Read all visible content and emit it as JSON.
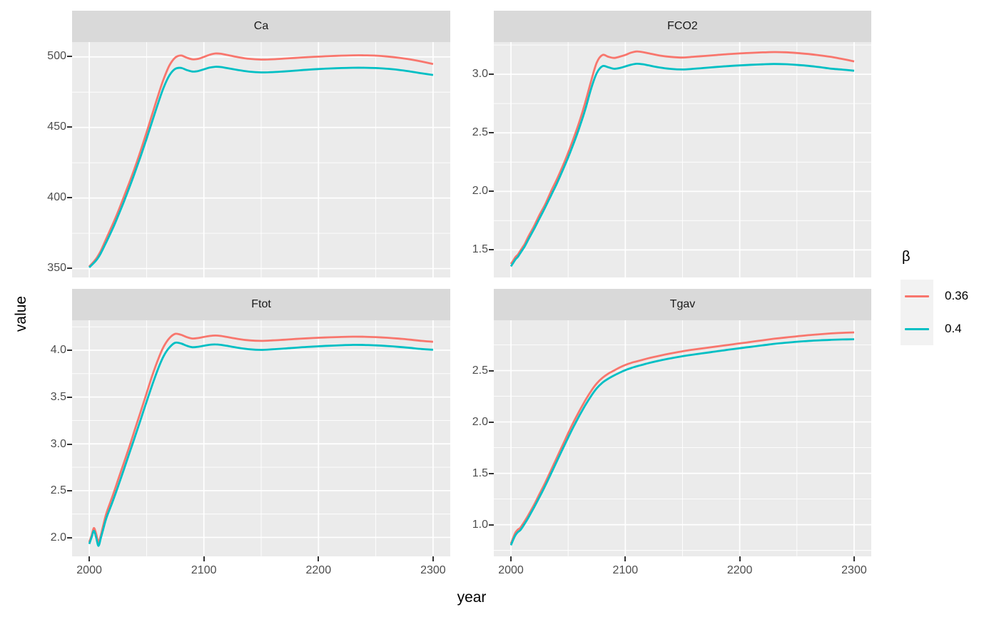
{
  "figure": {
    "type": "faceted-line-chart",
    "x_axis_title": "year",
    "y_axis_title": "value",
    "legend": {
      "title": "β",
      "position": "right",
      "entries": [
        {
          "label": "0.36",
          "color": "#F8766D"
        },
        {
          "label": "0.4",
          "color": "#00BFC4"
        }
      ]
    },
    "colors": {
      "panel_background": "#EBEBEB",
      "strip_background": "#D9D9D9",
      "gridline": "#FFFFFF",
      "tick_mark": "#333333",
      "tick_text": "#4D4D4D",
      "series_036": "#F8766D",
      "series_04": "#00BFC4"
    }
  },
  "chart_data": [
    {
      "type": "line",
      "facet": "Ca",
      "xlabel": "year",
      "ylabel": "value",
      "xlim": [
        1985,
        2315
      ],
      "ylim": [
        343.3,
        510.5
      ],
      "x_ticks": [
        2000,
        2100,
        2200,
        2300
      ],
      "x_minor": [
        2050,
        2150,
        2250
      ],
      "y_ticks": [
        350,
        400,
        450,
        500
      ],
      "y_tick_labels": [
        "350",
        "400",
        "450",
        "500"
      ],
      "y_minor": [
        375,
        425,
        475
      ],
      "grid": true,
      "x": [
        2000,
        2002,
        2004,
        2006,
        2008,
        2010,
        2012,
        2015,
        2020,
        2025,
        2030,
        2035,
        2040,
        2045,
        2050,
        2055,
        2060,
        2065,
        2070,
        2075,
        2080,
        2085,
        2090,
        2095,
        2100,
        2105,
        2110,
        2115,
        2120,
        2130,
        2140,
        2150,
        2160,
        2170,
        2180,
        2190,
        2200,
        2210,
        2220,
        2230,
        2240,
        2250,
        2260,
        2270,
        2280,
        2290,
        2300
      ],
      "series": [
        {
          "name": "0.36",
          "color": "#F8766D",
          "values": [
            351.5,
            353.2,
            355,
            357,
            359.5,
            362.5,
            366,
            371.5,
            380.5,
            390,
            400.5,
            411,
            422,
            434,
            446.5,
            459.5,
            472.5,
            484.5,
            494,
            499.5,
            501,
            499.5,
            498.3,
            498.6,
            500,
            501.5,
            502.4,
            502.2,
            501.4,
            499.8,
            498.6,
            498.1,
            498.3,
            498.8,
            499.3,
            499.8,
            500.2,
            500.6,
            500.9,
            501.1,
            501.1,
            500.9,
            500.3,
            499.4,
            498.2,
            496.7,
            495
          ]
        },
        {
          "name": "0.4",
          "color": "#00BFC4",
          "values": [
            350.8,
            352.4,
            354,
            355.8,
            358,
            360.8,
            364,
            369,
            377.5,
            387,
            397,
            407.5,
            418.5,
            430,
            442,
            454.5,
            467,
            478.5,
            487,
            491.5,
            492.2,
            490.7,
            489.6,
            490,
            491.2,
            492.4,
            493,
            492.8,
            492.1,
            490.7,
            489.5,
            489,
            489.2,
            489.7,
            490.3,
            490.9,
            491.4,
            491.8,
            492.1,
            492.3,
            492.3,
            492.1,
            491.6,
            490.8,
            489.7,
            488.4,
            487.2
          ]
        }
      ]
    },
    {
      "type": "line",
      "facet": "FCO2",
      "xlabel": "year",
      "ylabel": "value",
      "xlim": [
        1985,
        2315
      ],
      "ylim": [
        1.26,
        3.275
      ],
      "x_ticks": [
        2000,
        2100,
        2200,
        2300
      ],
      "x_minor": [
        2050,
        2150,
        2250
      ],
      "y_ticks": [
        1.5,
        2.0,
        2.5,
        3.0
      ],
      "y_tick_labels": [
        "1.5",
        "2.0",
        "2.5",
        "3.0"
      ],
      "y_minor": [
        1.75,
        2.25,
        2.75,
        3.25
      ],
      "grid": true,
      "x": [
        2000,
        2002,
        2004,
        2006,
        2008,
        2010,
        2012,
        2015,
        2020,
        2025,
        2030,
        2035,
        2040,
        2045,
        2050,
        2055,
        2060,
        2065,
        2070,
        2075,
        2080,
        2085,
        2090,
        2095,
        2100,
        2105,
        2110,
        2115,
        2120,
        2130,
        2140,
        2150,
        2160,
        2170,
        2180,
        2190,
        2200,
        2210,
        2220,
        2230,
        2240,
        2250,
        2260,
        2270,
        2280,
        2290,
        2300
      ],
      "series": [
        {
          "name": "0.36",
          "color": "#F8766D",
          "values": [
            1.38,
            1.41,
            1.44,
            1.46,
            1.49,
            1.52,
            1.55,
            1.61,
            1.7,
            1.8,
            1.89,
            2.0,
            2.1,
            2.21,
            2.33,
            2.46,
            2.6,
            2.76,
            2.94,
            3.1,
            3.165,
            3.15,
            3.14,
            3.15,
            3.165,
            3.185,
            3.195,
            3.19,
            3.18,
            3.16,
            3.148,
            3.143,
            3.15,
            3.157,
            3.165,
            3.172,
            3.178,
            3.183,
            3.187,
            3.19,
            3.188,
            3.182,
            3.173,
            3.162,
            3.148,
            3.13,
            3.11
          ]
        },
        {
          "name": "0.4",
          "color": "#00BFC4",
          "values": [
            1.36,
            1.39,
            1.42,
            1.44,
            1.47,
            1.5,
            1.53,
            1.585,
            1.675,
            1.77,
            1.865,
            1.965,
            2.065,
            2.175,
            2.29,
            2.415,
            2.55,
            2.7,
            2.875,
            3.01,
            3.07,
            3.06,
            3.047,
            3.053,
            3.067,
            3.082,
            3.09,
            3.086,
            3.077,
            3.058,
            3.046,
            3.041,
            3.047,
            3.055,
            3.063,
            3.07,
            3.076,
            3.081,
            3.085,
            3.088,
            3.086,
            3.08,
            3.072,
            3.061,
            3.048,
            3.04,
            3.03
          ]
        }
      ]
    },
    {
      "type": "line",
      "facet": "Ftot",
      "xlabel": "year",
      "ylabel": "value",
      "xlim": [
        1985,
        2315
      ],
      "ylim": [
        1.8,
        4.32
      ],
      "x_ticks": [
        2000,
        2100,
        2200,
        2300
      ],
      "x_minor": [
        2050,
        2150,
        2250
      ],
      "y_ticks": [
        2.0,
        2.5,
        3.0,
        3.5,
        4.0
      ],
      "y_tick_labels": [
        "2.0",
        "2.5",
        "3.0",
        "3.5",
        "4.0"
      ],
      "y_minor": [
        2.25,
        2.75,
        3.25,
        3.75,
        4.25
      ],
      "grid": true,
      "x": [
        2000,
        2002,
        2004,
        2006,
        2008,
        2010,
        2012,
        2015,
        2020,
        2025,
        2030,
        2035,
        2040,
        2045,
        2050,
        2055,
        2060,
        2065,
        2070,
        2075,
        2080,
        2085,
        2090,
        2095,
        2100,
        2105,
        2110,
        2115,
        2120,
        2130,
        2140,
        2150,
        2160,
        2170,
        2180,
        2190,
        2200,
        2210,
        2220,
        2230,
        2240,
        2250,
        2260,
        2270,
        2280,
        2290,
        2300
      ],
      "series": [
        {
          "name": "0.36",
          "color": "#F8766D",
          "values": [
            1.95,
            2.02,
            2.1,
            2.04,
            1.95,
            2.02,
            2.12,
            2.26,
            2.43,
            2.61,
            2.79,
            2.97,
            3.16,
            3.35,
            3.54,
            3.73,
            3.9,
            4.04,
            4.13,
            4.175,
            4.165,
            4.14,
            4.125,
            4.13,
            4.142,
            4.152,
            4.157,
            4.152,
            4.142,
            4.12,
            4.105,
            4.1,
            4.105,
            4.112,
            4.12,
            4.127,
            4.133,
            4.138,
            4.142,
            4.145,
            4.144,
            4.14,
            4.133,
            4.124,
            4.113,
            4.1,
            4.09
          ]
        },
        {
          "name": "0.4",
          "color": "#00BFC4",
          "values": [
            1.93,
            2.0,
            2.07,
            2.0,
            1.91,
            1.99,
            2.08,
            2.21,
            2.37,
            2.54,
            2.72,
            2.9,
            3.08,
            3.265,
            3.45,
            3.63,
            3.8,
            3.94,
            4.03,
            4.08,
            4.072,
            4.048,
            4.032,
            4.037,
            4.048,
            4.058,
            4.062,
            4.057,
            4.047,
            4.026,
            4.01,
            4.004,
            4.01,
            4.018,
            4.027,
            4.035,
            4.042,
            4.048,
            4.053,
            4.057,
            4.056,
            4.052,
            4.045,
            4.036,
            4.025,
            4.013,
            4.005
          ]
        }
      ]
    },
    {
      "type": "line",
      "facet": "Tgav",
      "xlabel": "year",
      "ylabel": "value",
      "xlim": [
        1985,
        2315
      ],
      "ylim": [
        0.694,
        2.99
      ],
      "x_ticks": [
        2000,
        2100,
        2200,
        2300
      ],
      "x_minor": [
        2050,
        2150,
        2250
      ],
      "y_ticks": [
        1.0,
        1.5,
        2.0,
        2.5
      ],
      "y_tick_labels": [
        "1.0",
        "1.5",
        "2.0",
        "2.5"
      ],
      "y_minor": [
        0.75,
        1.25,
        1.75,
        2.25,
        2.75
      ],
      "grid": true,
      "x": [
        2000,
        2002,
        2004,
        2006,
        2008,
        2010,
        2012,
        2015,
        2020,
        2025,
        2030,
        2035,
        2040,
        2045,
        2050,
        2055,
        2060,
        2065,
        2070,
        2075,
        2080,
        2085,
        2090,
        2095,
        2100,
        2105,
        2110,
        2115,
        2120,
        2130,
        2140,
        2150,
        2160,
        2170,
        2180,
        2190,
        2200,
        2210,
        2220,
        2230,
        2240,
        2250,
        2260,
        2270,
        2280,
        2290,
        2300
      ],
      "series": [
        {
          "name": "0.36",
          "color": "#F8766D",
          "values": [
            0.815,
            0.875,
            0.925,
            0.952,
            0.968,
            1.0,
            1.035,
            1.09,
            1.19,
            1.3,
            1.41,
            1.53,
            1.65,
            1.77,
            1.89,
            2.005,
            2.11,
            2.21,
            2.3,
            2.375,
            2.43,
            2.47,
            2.5,
            2.53,
            2.555,
            2.575,
            2.59,
            2.605,
            2.62,
            2.645,
            2.668,
            2.688,
            2.705,
            2.72,
            2.735,
            2.75,
            2.765,
            2.78,
            2.795,
            2.81,
            2.822,
            2.834,
            2.845,
            2.854,
            2.862,
            2.868,
            2.872
          ]
        },
        {
          "name": "0.4",
          "color": "#00BFC4",
          "values": [
            0.8,
            0.855,
            0.9,
            0.928,
            0.945,
            0.975,
            1.01,
            1.065,
            1.165,
            1.27,
            1.38,
            1.497,
            1.615,
            1.732,
            1.848,
            1.96,
            2.065,
            2.163,
            2.252,
            2.328,
            2.383,
            2.421,
            2.452,
            2.48,
            2.505,
            2.525,
            2.542,
            2.557,
            2.572,
            2.598,
            2.62,
            2.64,
            2.657,
            2.672,
            2.688,
            2.703,
            2.718,
            2.732,
            2.746,
            2.76,
            2.771,
            2.781,
            2.789,
            2.795,
            2.8,
            2.803,
            2.805
          ]
        }
      ]
    }
  ]
}
